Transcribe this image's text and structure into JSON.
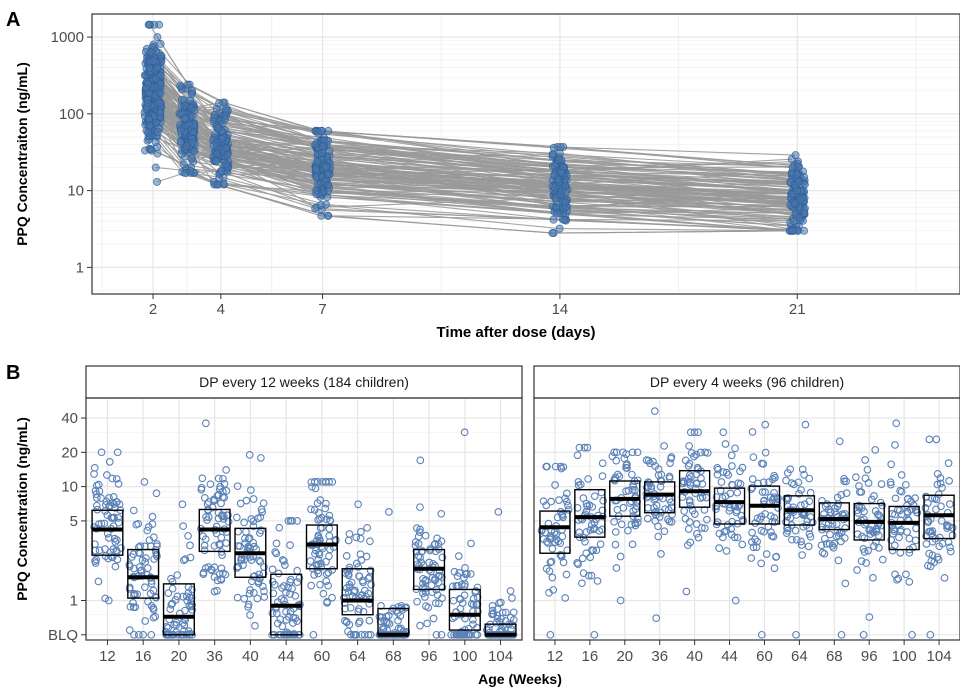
{
  "chart_data": [
    {
      "panel": "A",
      "type": "line",
      "ylabel": "PPQ Concentraiton (ng/mL)",
      "xlabel": "Time after dose (days)",
      "yscale": "log",
      "ylim": [
        0.45,
        2000
      ],
      "xlim": [
        0.2,
        25.8
      ],
      "yticks": [
        1,
        10,
        100,
        1000
      ],
      "ytick_labels": [
        "1",
        "10",
        "100",
        "1000"
      ],
      "xticks": [
        2,
        4,
        7,
        14,
        21
      ],
      "xtick_labels": [
        "2",
        "4",
        "7",
        "14",
        "21"
      ],
      "grid": true,
      "point_color": "#2E5F99",
      "line_color": "#999999",
      "sampling_days": [
        2,
        3,
        4,
        7,
        14,
        21
      ],
      "series_summary": [
        {
          "day": 2,
          "median": 200,
          "min": 13,
          "max": 1450
        },
        {
          "day": 3,
          "median": 60,
          "min": 17,
          "max": 240
        },
        {
          "day": 4,
          "median": 40,
          "min": 12,
          "max": 140
        },
        {
          "day": 7,
          "median": 20,
          "min": 4.7,
          "max": 60
        },
        {
          "day": 14,
          "median": 12,
          "min": 2.8,
          "max": 37
        },
        {
          "day": 21,
          "median": 8,
          "min": 3,
          "max": 29
        }
      ],
      "profiles": [
        [
          210,
          70,
          40,
          20,
          12,
          8
        ],
        [
          150,
          55,
          35,
          18,
          10,
          7
        ],
        [
          300,
          90,
          60,
          28,
          15,
          10
        ],
        [
          120,
          45,
          30,
          15,
          9,
          6
        ],
        [
          500,
          150,
          80,
          40,
          22,
          14
        ],
        [
          80,
          35,
          25,
          13,
          8,
          5
        ],
        [
          250,
          65,
          45,
          22,
          11,
          9
        ],
        [
          1000,
          200,
          110,
          55,
          30,
          20
        ],
        [
          60,
          30,
          20,
          12,
          7,
          4.5
        ],
        [
          400,
          120,
          70,
          35,
          18,
          12
        ],
        [
          180,
          50,
          38,
          17,
          13,
          8
        ],
        [
          35,
          22,
          18,
          10,
          6,
          4
        ],
        [
          700,
          180,
          95,
          45,
          25,
          16
        ],
        [
          140,
          40,
          28,
          25,
          12,
          9
        ],
        [
          20,
          18,
          13,
          9,
          5,
          3
        ],
        [
          320,
          100,
          55,
          30,
          20,
          11
        ],
        [
          90,
          38,
          22,
          14,
          9,
          6
        ],
        [
          450,
          110,
          75,
          33,
          14,
          10
        ],
        [
          230,
          75,
          50,
          26,
          16,
          13
        ],
        [
          1450,
          240,
          140,
          60,
          37,
          29
        ],
        [
          110,
          48,
          32,
          16,
          10,
          7
        ],
        [
          260,
          85,
          42,
          21,
          13,
          9
        ],
        [
          160,
          60,
          36,
          19,
          11,
          8
        ],
        [
          13,
          17,
          12,
          4.7,
          2.8,
          3
        ],
        [
          370,
          95,
          65,
          31,
          17,
          12
        ],
        [
          75,
          33,
          24,
          15,
          10,
          6.5
        ],
        [
          550,
          130,
          85,
          38,
          21,
          15
        ],
        [
          200,
          58,
          39,
          20,
          11.5,
          7.5
        ],
        [
          130,
          42,
          29,
          16.5,
          9.5,
          6.8
        ],
        [
          280,
          88,
          47,
          24,
          14,
          10
        ]
      ]
    },
    {
      "panel": "B",
      "type": "box",
      "ylabel": "PPQ Concentration (ng/mL)",
      "xlabel": "Age (Weeks)",
      "yscale": "log",
      "ylim": [
        0.45,
        60
      ],
      "yticks": [
        0.5,
        1,
        5,
        10,
        20,
        40
      ],
      "ytick_labels": [
        "BLQ",
        "1",
        "5",
        "10",
        "20",
        "40"
      ],
      "grid": true,
      "point_color": "#5B82B8",
      "categories": [
        "12",
        "16",
        "20",
        "36",
        "40",
        "44",
        "60",
        "64",
        "68",
        "96",
        "100",
        "104"
      ],
      "facets": [
        {
          "label": "DP every 12 weeks (184 children)",
          "boxes": [
            {
              "q1": 2.5,
              "median": 4.2,
              "q3": 6.2
            },
            {
              "q1": 1.05,
              "median": 1.6,
              "q3": 2.8
            },
            {
              "q1": 0.5,
              "median": 0.72,
              "q3": 1.4
            },
            {
              "q1": 2.7,
              "median": 4.2,
              "q3": 6.3
            },
            {
              "q1": 1.6,
              "median": 2.6,
              "q3": 4.3
            },
            {
              "q1": 0.5,
              "median": 0.9,
              "q3": 1.7
            },
            {
              "q1": 1.9,
              "median": 3.1,
              "q3": 4.6
            },
            {
              "q1": 0.75,
              "median": 1.0,
              "q3": 1.9
            },
            {
              "q1": 0.5,
              "median": 0.5,
              "q3": 0.85
            },
            {
              "q1": 1.25,
              "median": 1.9,
              "q3": 2.8
            },
            {
              "q1": 0.55,
              "median": 0.75,
              "q3": 1.25
            },
            {
              "q1": 0.5,
              "median": 0.5,
              "q3": 0.62
            }
          ],
          "min": [
            1.0,
            0.5,
            0.5,
            1.2,
            0.6,
            0.5,
            0.5,
            0.5,
            0.5,
            0.5,
            0.5,
            0.5
          ],
          "max": [
            20,
            11,
            7,
            36,
            19,
            5,
            11,
            7,
            6,
            17,
            30,
            6
          ]
        },
        {
          "label": "DP every 4 weeks (96 children)",
          "boxes": [
            {
              "q1": 2.6,
              "median": 4.4,
              "q3": 6.1
            },
            {
              "q1": 3.6,
              "median": 5.4,
              "q3": 9.4
            },
            {
              "q1": 5.5,
              "median": 7.8,
              "q3": 11.2
            },
            {
              "q1": 5.9,
              "median": 8.5,
              "q3": 11.0
            },
            {
              "q1": 6.6,
              "median": 9.1,
              "q3": 13.8
            },
            {
              "q1": 4.7,
              "median": 7.3,
              "q3": 9.7
            },
            {
              "q1": 4.7,
              "median": 6.8,
              "q3": 10.1
            },
            {
              "q1": 4.6,
              "median": 6.2,
              "q3": 8.3
            },
            {
              "q1": 4.2,
              "median": 5.2,
              "q3": 7.2
            },
            {
              "q1": 3.4,
              "median": 4.9,
              "q3": 7.1
            },
            {
              "q1": 2.8,
              "median": 4.8,
              "q3": 6.7
            },
            {
              "q1": 3.5,
              "median": 5.6,
              "q3": 8.4
            }
          ],
          "min": [
            0.5,
            0.5,
            1.0,
            0.7,
            1.2,
            1.0,
            0.5,
            0.5,
            0.5,
            0.5,
            0.5,
            0.5
          ],
          "max": [
            15,
            22,
            20,
            46,
            30,
            30,
            35,
            35,
            25,
            21,
            36,
            26
          ]
        }
      ]
    }
  ],
  "panel_labels": {
    "a": "A",
    "b": "B"
  },
  "colors": {
    "point_fill": "#4A78AD",
    "point_edge": "#2E5F99",
    "line": "#999999",
    "grid": "#E6E6E6",
    "strip_fill": "#FFFFFF",
    "box": "#000000"
  }
}
